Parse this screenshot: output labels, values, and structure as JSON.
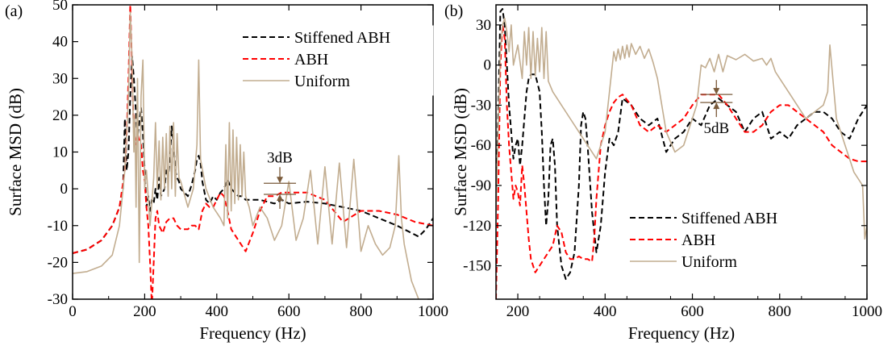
{
  "chart_data": [
    {
      "type": "line",
      "panel_label": "(a)",
      "xlabel": "Frequency (Hz)",
      "ylabel": "Surface MSD (dB)",
      "xlim": [
        0,
        1000
      ],
      "ylim": [
        -30,
        50
      ],
      "xticks": [
        0,
        200,
        400,
        600,
        800,
        1000
      ],
      "yticks": [
        -30,
        -20,
        -10,
        0,
        10,
        20,
        30,
        40,
        50
      ],
      "grid": false,
      "legend_position": "top-right",
      "annotation": {
        "text": "3dB",
        "x": 575,
        "y_top": 1.5,
        "y_bottom": -1.5
      },
      "series": [
        {
          "name": "Stiffened ABH",
          "color": "#000000",
          "style": "dashed",
          "x": [
            0,
            40,
            80,
            110,
            130,
            140,
            145,
            150,
            155,
            160,
            165,
            170,
            175,
            180,
            185,
            190,
            195,
            200,
            205,
            210,
            215,
            220,
            225,
            230,
            235,
            240,
            245,
            250,
            255,
            260,
            265,
            270,
            275,
            280,
            285,
            290,
            295,
            300,
            310,
            320,
            330,
            340,
            345,
            350,
            355,
            360,
            370,
            380,
            390,
            400,
            410,
            420,
            430,
            440,
            450,
            460,
            470,
            480,
            490,
            500,
            520,
            540,
            560,
            580,
            600,
            650,
            700,
            750,
            800,
            850,
            900,
            940,
            960,
            980,
            1000
          ],
          "y": [
            -17.5,
            -16.5,
            -14,
            -10,
            -5,
            0,
            19,
            5,
            10,
            25,
            36,
            30,
            22,
            14,
            18,
            22,
            15,
            5,
            -5,
            -2,
            -6,
            -3,
            -4,
            0,
            -3,
            3,
            -2,
            -1,
            0,
            5,
            3,
            8,
            17,
            12,
            5,
            3,
            2,
            0,
            -1,
            -2,
            1,
            5,
            8,
            9,
            7,
            2,
            -3,
            -4,
            -2,
            -3,
            -1,
            0,
            2.5,
            0,
            -1,
            -2,
            -2,
            -3,
            -3,
            -3,
            -3,
            -3.5,
            -4,
            -3,
            -4,
            -3.5,
            -4,
            -5,
            -6,
            -8,
            -10,
            -12,
            -13,
            -11,
            -8
          ]
        },
        {
          "name": "ABH",
          "color": "#ff0000",
          "style": "dashed",
          "x": [
            0,
            40,
            80,
            110,
            130,
            145,
            150,
            155,
            160,
            163,
            167,
            170,
            175,
            180,
            185,
            190,
            195,
            200,
            205,
            210,
            215,
            220,
            225,
            230,
            235,
            240,
            250,
            260,
            270,
            280,
            290,
            300,
            310,
            320,
            330,
            340,
            350,
            360,
            370,
            380,
            390,
            400,
            410,
            420,
            430,
            440,
            460,
            480,
            500,
            520,
            540,
            560,
            580,
            600,
            650,
            700,
            750,
            800,
            850,
            900,
            950,
            1000
          ],
          "y": [
            -17.5,
            -16.5,
            -14,
            -10,
            -5,
            5,
            15,
            30,
            50,
            40,
            25,
            15,
            12,
            15,
            13,
            12,
            5,
            2,
            -5,
            -10,
            -20,
            -32,
            -20,
            -8,
            -6,
            -10,
            -12,
            -9,
            -8,
            -8,
            -10,
            -11,
            -11,
            -11,
            -10,
            -10,
            -11,
            -6,
            -4,
            -5,
            -5,
            -3,
            -1,
            -2,
            -6,
            -11,
            -14,
            -17,
            -12,
            -6,
            -2,
            -2,
            -1,
            -1,
            -1,
            -3,
            -9,
            -6,
            -6,
            -7,
            -9,
            -10
          ]
        },
        {
          "name": "Uniform",
          "color": "#c2ad90",
          "style": "solid",
          "x": [
            0,
            40,
            80,
            110,
            130,
            145,
            155,
            160,
            165,
            170,
            173,
            176,
            180,
            185,
            190,
            195,
            200,
            205,
            215,
            225,
            230,
            235,
            240,
            245,
            250,
            255,
            260,
            265,
            270,
            275,
            280,
            285,
            290,
            295,
            300,
            320,
            335,
            345,
            350,
            355,
            370,
            390,
            410,
            420,
            425,
            430,
            435,
            440,
            445,
            450,
            455,
            460,
            465,
            470,
            475,
            480,
            490,
            500,
            520,
            540,
            560,
            580,
            600,
            620,
            640,
            660,
            680,
            700,
            720,
            740,
            760,
            780,
            800,
            820,
            840,
            860,
            880,
            895,
            905,
            912,
            920,
            940,
            960,
            980,
            1000
          ],
          "y": [
            -23,
            -22.5,
            -21,
            -18,
            -10,
            5,
            25,
            48,
            35,
            10,
            20,
            -5,
            30,
            -20,
            25,
            35,
            0,
            5,
            -10,
            3,
            18,
            0,
            13,
            -3,
            14,
            0,
            15,
            -2,
            17,
            0,
            18,
            -2,
            15,
            3,
            2,
            -5,
            0,
            12,
            35,
            8,
            0,
            -5,
            -8,
            -10,
            12,
            -8,
            18,
            -6,
            16,
            -4,
            14,
            -3,
            12,
            -2,
            10,
            -2,
            -5,
            -10,
            -5,
            -8,
            -14,
            -10,
            2,
            -14,
            -8,
            5,
            -15,
            6,
            -15,
            7,
            -16,
            8,
            -17,
            -10,
            -15,
            -18,
            -16,
            -10,
            9,
            -8,
            -15,
            -25,
            -30,
            -33,
            -34
          ]
        }
      ]
    },
    {
      "type": "line",
      "panel_label": "(b)",
      "xlabel": "Frequency (Hz)",
      "ylabel": "Surface MSD (dB)",
      "xlim": [
        150,
        1000
      ],
      "ylim": [
        -175,
        45
      ],
      "xticks": [
        200,
        400,
        600,
        800,
        1000
      ],
      "yticks": [
        -150,
        -120,
        -90,
        -60,
        -30,
        0,
        30
      ],
      "grid": false,
      "legend_position": "bottom-center",
      "annotation": {
        "text": "5dB",
        "x": 655,
        "y_top": -22,
        "y_bottom": -28
      },
      "series": [
        {
          "name": "Stiffened ABH",
          "color": "#000000",
          "style": "dashed",
          "x": [
            150,
            155,
            160,
            165,
            170,
            175,
            180,
            185,
            190,
            195,
            200,
            205,
            210,
            215,
            220,
            225,
            230,
            240,
            250,
            255,
            260,
            265,
            270,
            275,
            280,
            285,
            290,
            300,
            310,
            320,
            330,
            340,
            345,
            350,
            355,
            360,
            370,
            380,
            390,
            400,
            410,
            420,
            430,
            440,
            460,
            480,
            500,
            520,
            540,
            560,
            580,
            600,
            620,
            640,
            660,
            680,
            700,
            720,
            740,
            760,
            780,
            800,
            820,
            840,
            860,
            880,
            900,
            920,
            940,
            960,
            980,
            1000
          ],
          "y": [
            -100,
            -40,
            40,
            42,
            30,
            0,
            -30,
            -50,
            -70,
            -60,
            -55,
            -75,
            -60,
            -40,
            -20,
            -10,
            -7,
            -7,
            -20,
            -50,
            -90,
            -120,
            -100,
            -60,
            -55,
            -75,
            -120,
            -150,
            -160,
            -155,
            -140,
            -90,
            -45,
            -35,
            -40,
            -60,
            -110,
            -140,
            -120,
            -80,
            -55,
            -60,
            -50,
            -25,
            -30,
            -40,
            -45,
            -40,
            -65,
            -55,
            -50,
            -40,
            -45,
            -30,
            -25,
            -30,
            -35,
            -50,
            -40,
            -35,
            -55,
            -50,
            -55,
            -45,
            -40,
            -35,
            -35,
            -40,
            -50,
            -55,
            -40,
            -30
          ]
        },
        {
          "name": "ABH",
          "color": "#ff0000",
          "style": "dashed",
          "x": [
            150,
            155,
            160,
            165,
            170,
            175,
            180,
            185,
            190,
            195,
            200,
            205,
            210,
            215,
            220,
            225,
            230,
            240,
            250,
            260,
            270,
            280,
            290,
            300,
            310,
            320,
            330,
            340,
            350,
            360,
            370,
            375,
            380,
            390,
            400,
            410,
            420,
            430,
            440,
            460,
            480,
            500,
            520,
            540,
            560,
            580,
            600,
            620,
            640,
            660,
            680,
            700,
            720,
            740,
            760,
            780,
            800,
            820,
            840,
            860,
            880,
            900,
            920,
            940,
            960,
            980,
            1000
          ],
          "y": [
            -175,
            -100,
            0,
            30,
            20,
            -30,
            -60,
            -80,
            -100,
            -90,
            -95,
            -105,
            -75,
            -90,
            -110,
            -130,
            -145,
            -155,
            -150,
            -145,
            -140,
            -135,
            -120,
            -125,
            -140,
            -145,
            -145,
            -143,
            -145,
            -145,
            -147,
            -130,
            -100,
            -60,
            -45,
            -35,
            -28,
            -24,
            -22,
            -30,
            -45,
            -50,
            -45,
            -50,
            -45,
            -40,
            -30,
            -22,
            -22,
            -22,
            -30,
            -40,
            -50,
            -50,
            -45,
            -35,
            -30,
            -30,
            -35,
            -40,
            -45,
            -50,
            -60,
            -65,
            -70,
            -72,
            -72
          ]
        },
        {
          "name": "Uniform",
          "color": "#c2ad90",
          "style": "solid",
          "x": [
            150,
            155,
            160,
            165,
            170,
            175,
            180,
            185,
            190,
            200,
            210,
            215,
            220,
            225,
            230,
            235,
            240,
            245,
            250,
            255,
            260,
            265,
            270,
            280,
            290,
            300,
            320,
            340,
            360,
            380,
            400,
            410,
            420,
            425,
            430,
            435,
            440,
            445,
            450,
            455,
            460,
            470,
            480,
            490,
            500,
            510,
            520,
            530,
            540,
            560,
            580,
            600,
            610,
            620,
            630,
            640,
            650,
            660,
            670,
            680,
            700,
            720,
            740,
            760,
            770,
            780,
            790,
            800,
            820,
            840,
            860,
            880,
            900,
            910,
            915,
            930,
            950,
            970,
            990,
            995,
            1000
          ],
          "y": [
            -110,
            -50,
            10,
            30,
            35,
            25,
            10,
            30,
            0,
            15,
            -10,
            25,
            0,
            28,
            -10,
            25,
            -8,
            20,
            -5,
            28,
            -10,
            25,
            -12,
            -20,
            -25,
            -30,
            -40,
            -50,
            -60,
            -70,
            -50,
            -20,
            10,
            3,
            12,
            4,
            14,
            5,
            15,
            6,
            16,
            8,
            14,
            5,
            12,
            2,
            -10,
            -30,
            -50,
            -65,
            -60,
            -40,
            -30,
            0,
            -2,
            5,
            -5,
            8,
            -5,
            7,
            4,
            8,
            3,
            5,
            0,
            5,
            -5,
            -10,
            -20,
            -30,
            -40,
            -35,
            -30,
            -20,
            15,
            -40,
            -60,
            -80,
            -90,
            -130,
            -120
          ]
        }
      ]
    }
  ]
}
